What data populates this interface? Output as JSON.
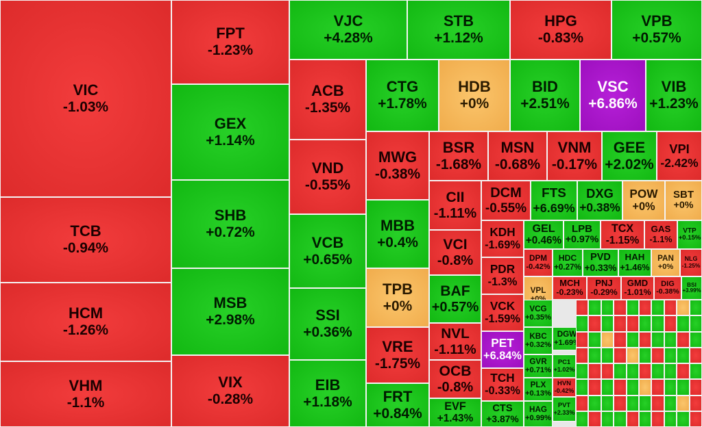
{
  "colors": {
    "up": "#17c317",
    "down": "#e63232",
    "reference": "#f5b95c",
    "ceiling": "#a915cb"
  },
  "chart_data": {
    "type": "treemap",
    "labeled": [
      {
        "symbol": "VIC",
        "change": "-1.03%",
        "status": "down"
      },
      {
        "symbol": "TCB",
        "change": "-0.94%",
        "status": "down"
      },
      {
        "symbol": "HCM",
        "change": "-1.26%",
        "status": "down"
      },
      {
        "symbol": "VHM",
        "change": "-1.1%",
        "status": "down"
      },
      {
        "symbol": "FPT",
        "change": "-1.23%",
        "status": "down"
      },
      {
        "symbol": "GEX",
        "change": "+1.14%",
        "status": "up"
      },
      {
        "symbol": "SHB",
        "change": "+0.72%",
        "status": "up"
      },
      {
        "symbol": "MSB",
        "change": "+2.98%",
        "status": "up"
      },
      {
        "symbol": "VIX",
        "change": "-0.28%",
        "status": "down"
      },
      {
        "symbol": "VJC",
        "change": "+4.28%",
        "status": "up"
      },
      {
        "symbol": "STB",
        "change": "+1.12%",
        "status": "up"
      },
      {
        "symbol": "HPG",
        "change": "-0.83%",
        "status": "down"
      },
      {
        "symbol": "VPB",
        "change": "+0.57%",
        "status": "up"
      },
      {
        "symbol": "ACB",
        "change": "-1.35%",
        "status": "down"
      },
      {
        "symbol": "VND",
        "change": "-0.55%",
        "status": "down"
      },
      {
        "symbol": "VCB",
        "change": "+0.65%",
        "status": "up"
      },
      {
        "symbol": "SSI",
        "change": "+0.36%",
        "status": "up"
      },
      {
        "symbol": "EIB",
        "change": "+1.18%",
        "status": "up"
      },
      {
        "symbol": "CTG",
        "change": "+1.78%",
        "status": "up"
      },
      {
        "symbol": "HDB",
        "change": "+0%",
        "status": "reference"
      },
      {
        "symbol": "BID",
        "change": "+2.51%",
        "status": "up"
      },
      {
        "symbol": "VSC",
        "change": "+6.86%",
        "status": "ceiling"
      },
      {
        "symbol": "VIB",
        "change": "+1.23%",
        "status": "up"
      },
      {
        "symbol": "MWG",
        "change": "-0.38%",
        "status": "down"
      },
      {
        "symbol": "MBB",
        "change": "+0.4%",
        "status": "up"
      },
      {
        "symbol": "TPB",
        "change": "+0%",
        "status": "reference"
      },
      {
        "symbol": "VRE",
        "change": "-1.75%",
        "status": "down"
      },
      {
        "symbol": "FRT",
        "change": "+0.84%",
        "status": "up"
      },
      {
        "symbol": "BSR",
        "change": "-1.68%",
        "status": "down"
      },
      {
        "symbol": "MSN",
        "change": "-0.68%",
        "status": "down"
      },
      {
        "symbol": "VNM",
        "change": "-0.17%",
        "status": "down"
      },
      {
        "symbol": "GEE",
        "change": "+2.02%",
        "status": "up"
      },
      {
        "symbol": "VPI",
        "change": "-2.42%",
        "status": "down"
      },
      {
        "symbol": "CII",
        "change": "-1.11%",
        "status": "down"
      },
      {
        "symbol": "DCM",
        "change": "-0.55%",
        "status": "down"
      },
      {
        "symbol": "FTS",
        "change": "+6.69%",
        "status": "up"
      },
      {
        "symbol": "DXG",
        "change": "+0.38%",
        "status": "up"
      },
      {
        "symbol": "POW",
        "change": "+0%",
        "status": "reference"
      },
      {
        "symbol": "SBT",
        "change": "+0%",
        "status": "reference"
      },
      {
        "symbol": "VCI",
        "change": "-0.8%",
        "status": "down"
      },
      {
        "symbol": "KDH",
        "change": "-1.69%",
        "status": "down"
      },
      {
        "symbol": "PDR",
        "change": "-1.3%",
        "status": "down"
      },
      {
        "symbol": "VCK",
        "change": "-1.59%",
        "status": "down"
      },
      {
        "symbol": "BAF",
        "change": "+0.57%",
        "status": "up"
      },
      {
        "symbol": "NVL",
        "change": "-1.11%",
        "status": "down"
      },
      {
        "symbol": "PET",
        "change": "+6.84%",
        "status": "ceiling"
      },
      {
        "symbol": "OCB",
        "change": "-0.8%",
        "status": "down"
      },
      {
        "symbol": "TCH",
        "change": "-0.33%",
        "status": "down"
      },
      {
        "symbol": "EVF",
        "change": "+1.43%",
        "status": "up"
      },
      {
        "symbol": "CTS",
        "change": "+3.87%",
        "status": "up"
      },
      {
        "symbol": "GEL",
        "change": "+0.46%",
        "status": "up"
      },
      {
        "symbol": "LPB",
        "change": "+0.97%",
        "status": "up"
      },
      {
        "symbol": "TCX",
        "change": "-1.15%",
        "status": "down"
      },
      {
        "symbol": "GAS",
        "change": "-1.1%",
        "status": "down"
      },
      {
        "symbol": "VTP",
        "change": "+0.15%",
        "status": "up"
      },
      {
        "symbol": "DPM",
        "change": "-0.42%",
        "status": "down"
      },
      {
        "symbol": "HDC",
        "change": "+0.27%",
        "status": "up"
      },
      {
        "symbol": "PVD",
        "change": "+0.33%",
        "status": "up"
      },
      {
        "symbol": "HAH",
        "change": "+1.46%",
        "status": "up"
      },
      {
        "symbol": "PAN",
        "change": "+0%",
        "status": "reference"
      },
      {
        "symbol": "NLG",
        "change": "-1.25%",
        "status": "down"
      },
      {
        "symbol": "MCH",
        "change": "-0.23%",
        "status": "down"
      },
      {
        "symbol": "PNJ",
        "change": "-0.29%",
        "status": "down"
      },
      {
        "symbol": "GMD",
        "change": "-1.01%",
        "status": "down"
      },
      {
        "symbol": "DIG",
        "change": "-0.38%",
        "status": "down"
      },
      {
        "symbol": "BSI",
        "change": "+3.99%",
        "status": "up"
      },
      {
        "symbol": "VPL",
        "change": "+0%",
        "status": "reference"
      },
      {
        "symbol": "VCG",
        "change": "+0.35%",
        "status": "up"
      },
      {
        "symbol": "KBC",
        "change": "+0.32%",
        "status": "up"
      },
      {
        "symbol": "DGW",
        "change": "+1.69%",
        "status": "up"
      },
      {
        "symbol": "GVR",
        "change": "+0.71%",
        "status": "up"
      },
      {
        "symbol": "PC1",
        "change": "+1.02%",
        "status": "up"
      },
      {
        "symbol": "PLX",
        "change": "+0.13%",
        "status": "up"
      },
      {
        "symbol": "HVN",
        "change": "-0.42%",
        "status": "down"
      },
      {
        "symbol": "HAG",
        "change": "+0.99%",
        "status": "up"
      },
      {
        "symbol": "PVT",
        "change": "+2.33%",
        "status": "up"
      }
    ],
    "mini_status": [
      "down",
      "up",
      "up",
      "down",
      "up",
      "down",
      "up",
      "down",
      "ref",
      "up",
      "up",
      "down",
      "up",
      "down",
      "down",
      "up",
      "up",
      "down",
      "up",
      "up",
      "down",
      "up",
      "ref",
      "down",
      "up",
      "down",
      "up",
      "up",
      "down",
      "up",
      "down",
      "up",
      "up",
      "down",
      "ref",
      "up",
      "down",
      "up",
      "up",
      "down",
      "up",
      "down",
      "down",
      "up",
      "up",
      "down",
      "up",
      "up",
      "down",
      "up",
      "up",
      "down",
      "up",
      "down",
      "up",
      "ref",
      "down",
      "up",
      "up",
      "down",
      "down",
      "up",
      "up",
      "down",
      "up",
      "up",
      "down",
      "up",
      "ref",
      "down",
      "up",
      "down",
      "up",
      "up",
      "down",
      "up",
      "down",
      "up",
      "up",
      "down"
    ]
  }
}
